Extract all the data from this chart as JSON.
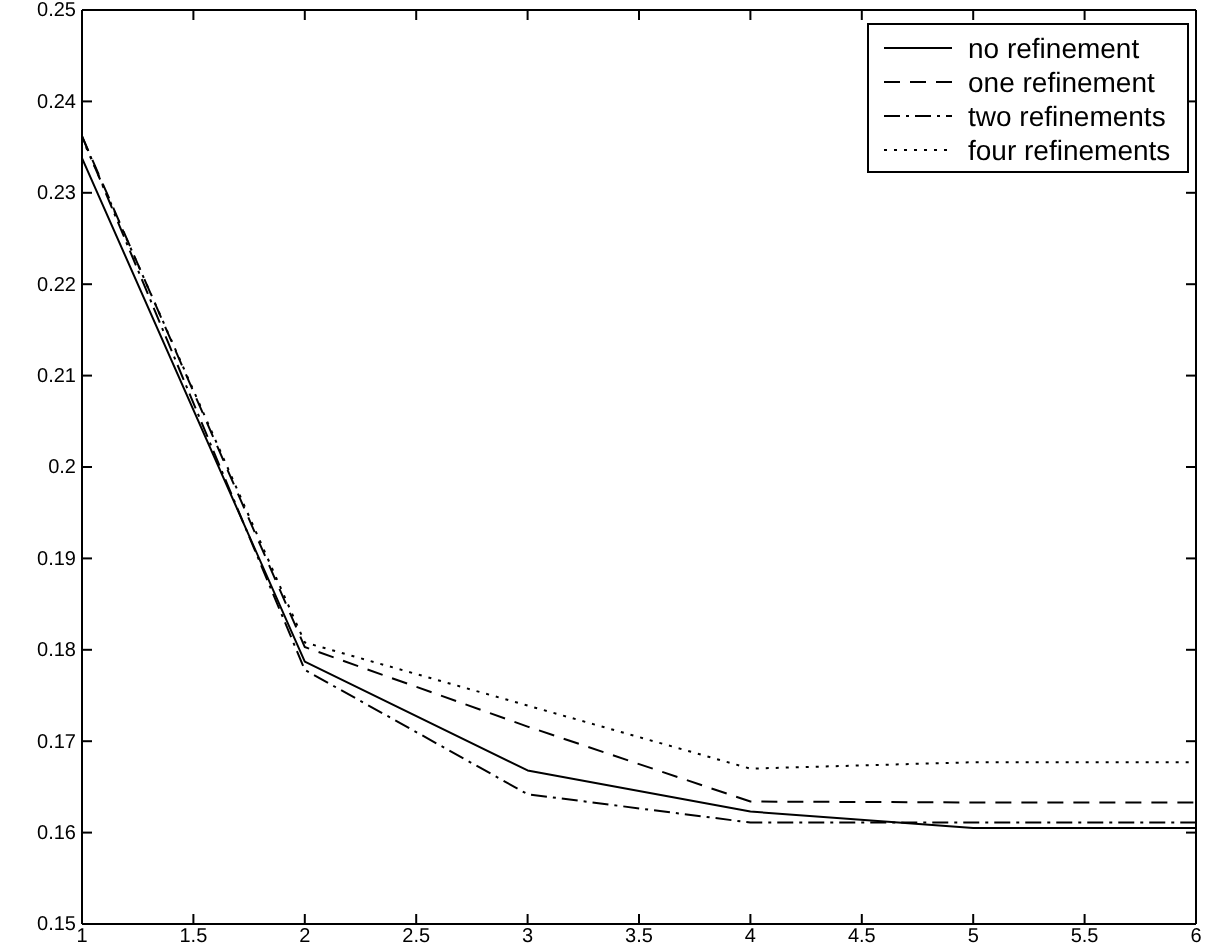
{
  "chart_data": {
    "type": "line",
    "x": [
      1,
      2,
      3,
      4,
      5,
      6
    ],
    "series": [
      {
        "name": "no refinement",
        "color": "#000000",
        "line_style": "solid",
        "values": [
          0.2338,
          0.1787,
          0.1668,
          0.1623,
          0.1605,
          0.1605
        ]
      },
      {
        "name": "one refinement",
        "color": "#000000",
        "line_style": "dashed",
        "values": [
          0.2362,
          0.1803,
          0.1716,
          0.1634,
          0.1633,
          0.1633
        ]
      },
      {
        "name": "two refinements",
        "color": "#000000",
        "line_style": "dashdot",
        "values": [
          0.2362,
          0.1778,
          0.1642,
          0.1611,
          0.1611,
          0.1611
        ]
      },
      {
        "name": "four refinements",
        "color": "#000000",
        "line_style": "dotted",
        "values": [
          0.236,
          0.1808,
          0.1739,
          0.167,
          0.1677,
          0.1677
        ]
      }
    ],
    "xlim": [
      1,
      6
    ],
    "xticks": [
      1,
      1.5,
      2,
      2.5,
      3,
      3.5,
      4,
      4.5,
      5,
      5.5,
      6
    ],
    "ylim": [
      0.15,
      0.25
    ],
    "yticks": [
      0.15,
      0.16,
      0.17,
      0.18,
      0.19,
      0.2,
      0.21,
      0.22,
      0.23,
      0.24,
      0.25
    ],
    "legend": "top right",
    "grid": false,
    "marker": "none"
  }
}
